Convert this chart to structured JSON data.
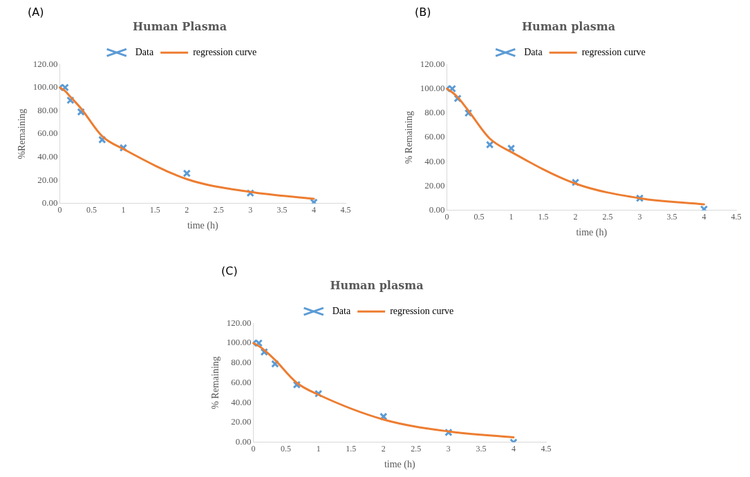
{
  "chart_data": [
    {
      "type": "scatter",
      "title": "Human Plasma",
      "xlabel": "time (h)",
      "ylabel": "%Remaining",
      "annotations": [
        "(A)"
      ],
      "legend": "top",
      "grid": false,
      "xlim": [
        0,
        4.5
      ],
      "xticks": [
        0,
        0.5,
        1,
        1.5,
        2,
        2.5,
        3,
        3.5,
        4,
        4.5
      ],
      "ylim": [
        0,
        120
      ],
      "yticks": [
        {
          "value": 0,
          "label": "0.00"
        },
        {
          "value": 20,
          "label": "20.00"
        },
        {
          "value": 40,
          "label": "40.00"
        },
        {
          "value": 60,
          "label": "60.00"
        },
        {
          "value": 80,
          "label": "80.00"
        },
        {
          "value": 100,
          "label": "100.00"
        },
        {
          "value": 120,
          "label": "120.00"
        }
      ],
      "x": [
        0,
        0.083,
        0.167,
        0.333,
        0.667,
        1,
        2,
        3,
        4
      ],
      "series": [
        {
          "name": "Data",
          "type": "scatter",
          "marker": "cross",
          "color": "#5b9bd5",
          "values": [
            100,
            100,
            89,
            79,
            55,
            48,
            26,
            9,
            1
          ]
        },
        {
          "name": "regression curve",
          "type": "line",
          "marker": "none",
          "line_style": "solid",
          "color": "#ed7d31",
          "values": [
            100,
            97,
            92,
            82,
            58,
            47,
            21,
            10,
            4
          ]
        }
      ]
    },
    {
      "type": "scatter",
      "title": "Human plasma",
      "xlabel": "time (h)",
      "ylabel": "% Remaining",
      "annotations": [
        "(B)"
      ],
      "legend": "top",
      "grid": false,
      "xlim": [
        0,
        4.5
      ],
      "xticks": [
        0,
        0.5,
        1,
        1.5,
        2,
        2.5,
        3,
        3.5,
        4,
        4.5
      ],
      "ylim": [
        0,
        120
      ],
      "yticks": [
        {
          "value": 0,
          "label": "0.00"
        },
        {
          "value": 20,
          "label": "20.00"
        },
        {
          "value": 40,
          "label": "40.00"
        },
        {
          "value": 60,
          "label": "60.00"
        },
        {
          "value": 80,
          "label": "80.00"
        },
        {
          "value": 100,
          "label": "100.00"
        },
        {
          "value": 120,
          "label": "120.00"
        }
      ],
      "x": [
        0,
        0.083,
        0.167,
        0.333,
        0.667,
        1,
        2,
        3,
        4
      ],
      "series": [
        {
          "name": "Data",
          "type": "scatter",
          "marker": "cross",
          "color": "#5b9bd5",
          "values": [
            100,
            100,
            92,
            80,
            54,
            51,
            23,
            10,
            1
          ]
        },
        {
          "name": "regression curve",
          "type": "line",
          "marker": "none",
          "line_style": "solid",
          "color": "#ed7d31",
          "values": [
            100,
            97,
            93,
            82,
            59,
            48,
            22,
            10,
            5
          ]
        }
      ]
    },
    {
      "type": "scatter",
      "title": "Human plasma",
      "xlabel": "time (h)",
      "ylabel": "% Remaining",
      "annotations": [
        "(C)"
      ],
      "legend": "top",
      "grid": false,
      "xlim": [
        0,
        4.5
      ],
      "xticks": [
        0,
        0.5,
        1,
        1.5,
        2,
        2.5,
        3,
        3.5,
        4,
        4.5
      ],
      "ylim": [
        0,
        120
      ],
      "yticks": [
        {
          "value": 0,
          "label": "0.00"
        },
        {
          "value": 20,
          "label": "20.00"
        },
        {
          "value": 40,
          "label": "40.00"
        },
        {
          "value": 60,
          "label": "60.00"
        },
        {
          "value": 80,
          "label": "80.00"
        },
        {
          "value": 100,
          "label": "100.00"
        },
        {
          "value": 120,
          "label": "120.00"
        }
      ],
      "x": [
        0,
        0.083,
        0.167,
        0.333,
        0.667,
        1,
        2,
        3,
        4
      ],
      "series": [
        {
          "name": "Data",
          "type": "scatter",
          "marker": "cross",
          "color": "#5b9bd5",
          "values": [
            100,
            100,
            91,
            79,
            58,
            49,
            26,
            10,
            0
          ]
        },
        {
          "name": "regression curve",
          "type": "line",
          "marker": "none",
          "line_style": "solid",
          "color": "#ed7d31",
          "values": [
            100,
            97,
            93,
            83,
            60,
            48,
            23,
            11,
            5
          ]
        }
      ]
    }
  ]
}
